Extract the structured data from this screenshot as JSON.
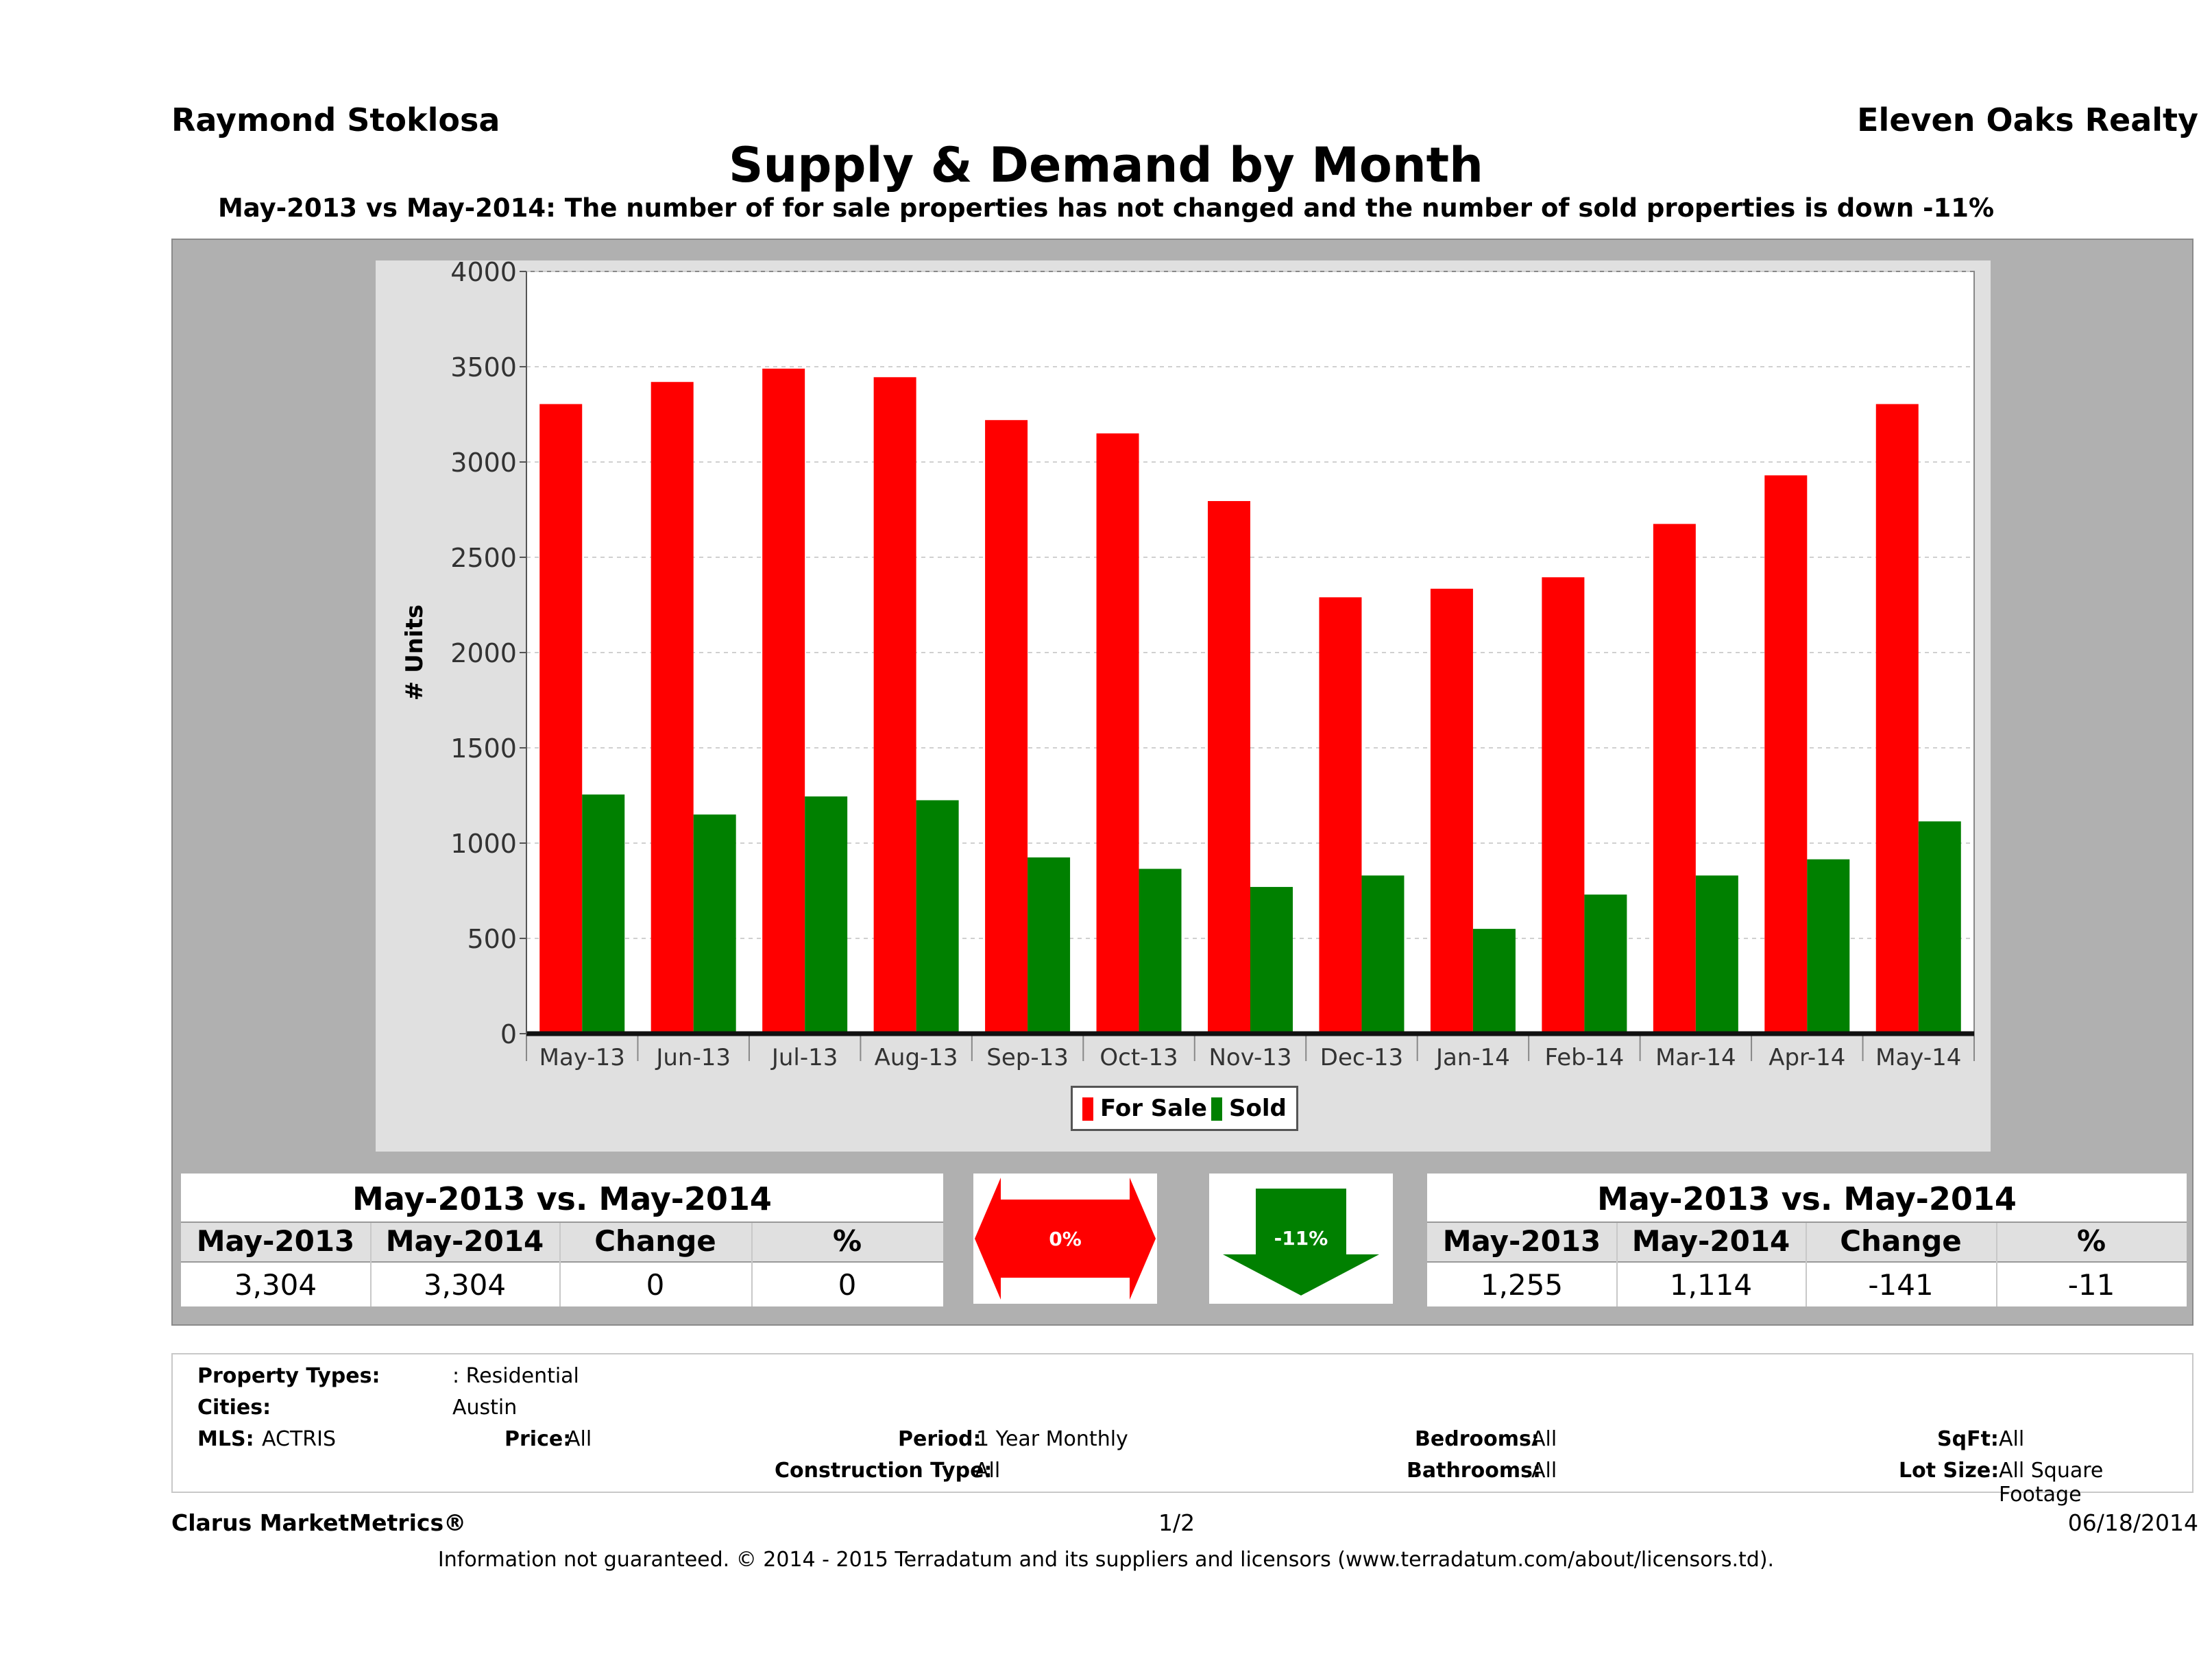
{
  "header": {
    "agent": "Raymond Stoklosa",
    "brokerage": "Eleven Oaks Realty",
    "title": "Supply & Demand by Month",
    "subtitle": "May-2013 vs May-2014: The number of for sale properties has not changed and the number of sold properties is down -11%"
  },
  "chart_data": {
    "type": "bar",
    "title": "",
    "xlabel": "",
    "ylabel": "# Units",
    "ylim": [
      0,
      4000
    ],
    "yticks": [
      "0",
      "500",
      "1000",
      "1500",
      "2000",
      "2500",
      "3000",
      "3500",
      "4000"
    ],
    "grid": true,
    "legend_position": "bottom",
    "categories": [
      "May-13",
      "Jun-13",
      "Jul-13",
      "Aug-13",
      "Sep-13",
      "Oct-13",
      "Nov-13",
      "Dec-13",
      "Jan-14",
      "Feb-14",
      "Mar-14",
      "Apr-14",
      "May-14"
    ],
    "series": [
      {
        "name": "For Sale",
        "color": "#ff0000",
        "values": [
          3304,
          3420,
          3490,
          3445,
          3220,
          3150,
          2795,
          2290,
          2335,
          2395,
          2675,
          2930,
          3304
        ]
      },
      {
        "name": "Sold",
        "color": "#008000",
        "values": [
          1255,
          1150,
          1245,
          1225,
          925,
          865,
          770,
          830,
          550,
          730,
          830,
          915,
          1114
        ]
      }
    ]
  },
  "for_sale_stats": {
    "title": "May-2013 vs. May-2014",
    "headers": [
      "May-2013",
      "May-2014",
      "Change",
      "%"
    ],
    "values": [
      "3,304",
      "3,304",
      "0",
      "0"
    ],
    "badge": "0%",
    "badge_color": "#ff0000"
  },
  "sold_stats": {
    "title": "May-2013 vs. May-2014",
    "headers": [
      "May-2013",
      "May-2014",
      "Change",
      "%"
    ],
    "values": [
      "1,255",
      "1,114",
      "-141",
      "-11"
    ],
    "badge": "-11%",
    "badge_color": "#008000"
  },
  "criteria": {
    "property_types_label": "Property Types:",
    "property_types_value": ": Residential",
    "cities_label": "Cities:",
    "cities_value": "Austin",
    "mls_label": "MLS:",
    "mls_value": "ACTRIS",
    "price_label": "Price:",
    "price_value": "All",
    "period_label": "Period:",
    "period_value": "1 Year Monthly",
    "construction_label": "Construction Type:",
    "construction_value": "All",
    "bedrooms_label": "Bedrooms:",
    "bedrooms_value": "All",
    "bathrooms_label": "Bathrooms:",
    "bathrooms_value": "All",
    "sqft_label": "SqFt:",
    "sqft_value": "All",
    "lot_label": "Lot Size:",
    "lot_value": "All Square Footage"
  },
  "footer": {
    "product": "Clarus MarketMetrics®",
    "page": "1/2",
    "date": "06/18/2014",
    "disclaimer": "Information not guaranteed. © 2014 - 2015 Terradatum and its suppliers and licensors (www.terradatum.com/about/licensors.td)."
  }
}
